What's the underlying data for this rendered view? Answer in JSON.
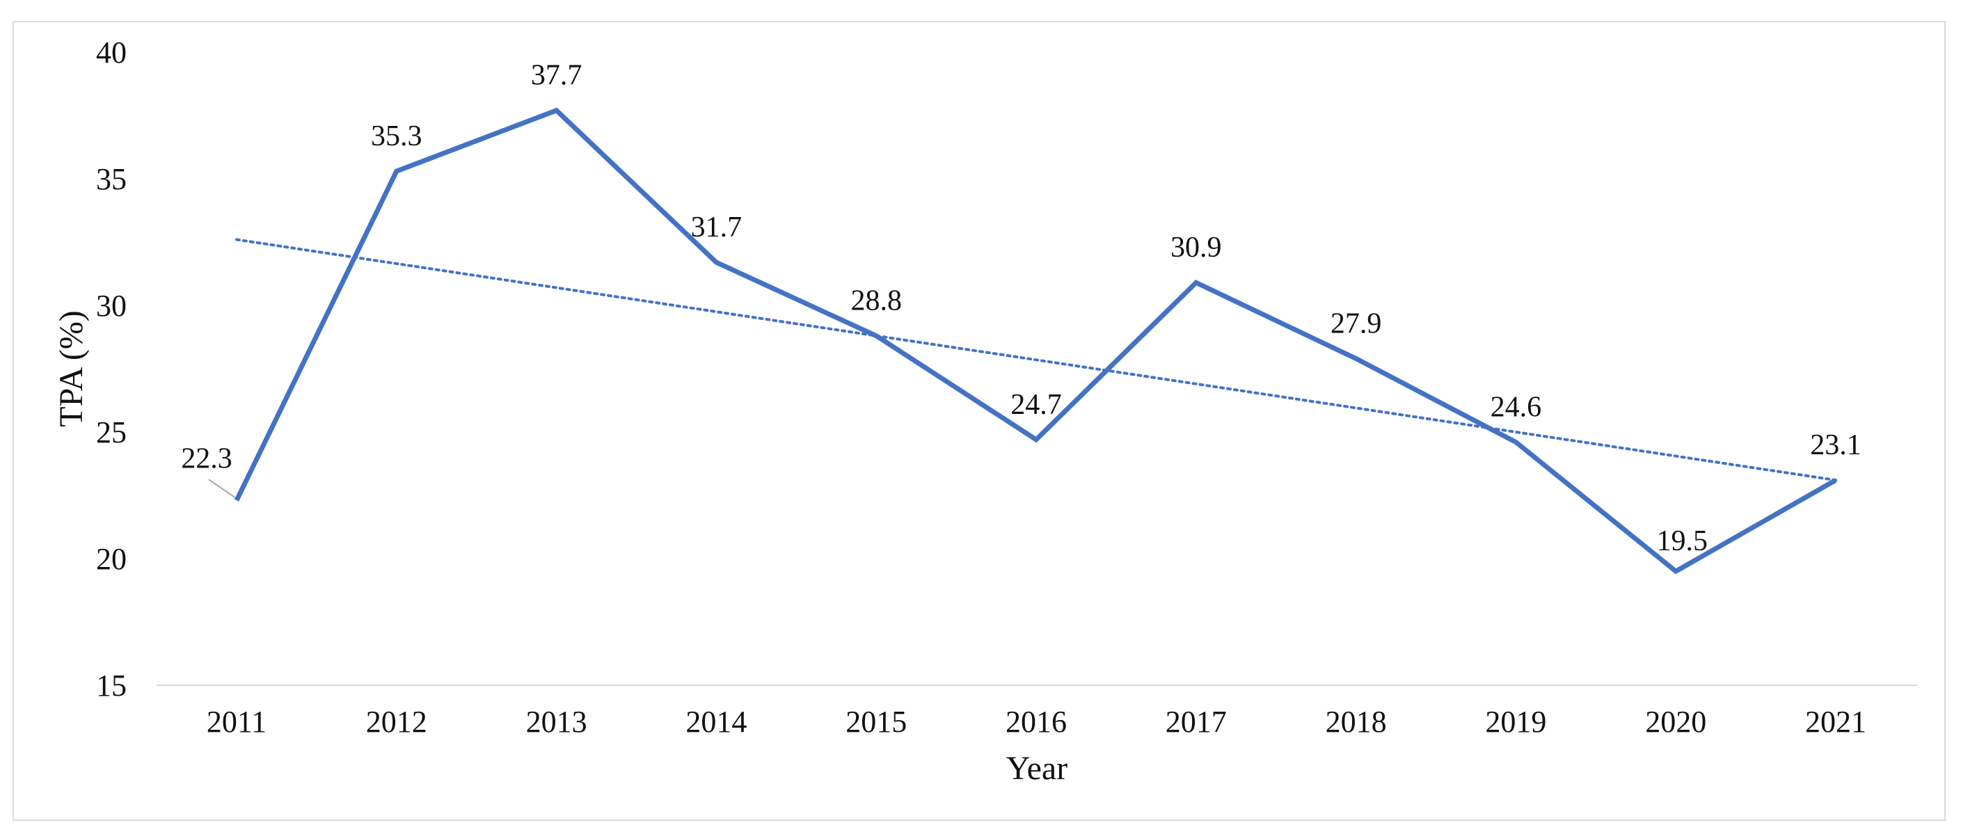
{
  "chart_data": {
    "type": "line",
    "title": "",
    "xlabel": "Year",
    "ylabel": "TPA (%)",
    "categories": [
      "2011",
      "2012",
      "2013",
      "2014",
      "2015",
      "2016",
      "2017",
      "2018",
      "2019",
      "2020",
      "2021"
    ],
    "series": [
      {
        "name": "TPA (%)",
        "values": [
          22.3,
          35.3,
          37.7,
          31.7,
          28.8,
          24.7,
          30.9,
          27.9,
          24.6,
          19.5,
          23.1
        ],
        "data_labels": [
          "22.3",
          "35.3",
          "37.7",
          "31.7",
          "28.8",
          "24.7",
          "30.9",
          "27.9",
          "24.6",
          "19.5",
          "23.1"
        ]
      }
    ],
    "trendline": {
      "type": "linear",
      "style": "dotted",
      "start": 32.6,
      "end": 23.1
    },
    "y_ticks": [
      "15",
      "20",
      "25",
      "30",
      "35",
      "40"
    ],
    "ylim": [
      15,
      40
    ],
    "grid": false,
    "legend": "none",
    "colors": {
      "series": "#4472C4",
      "trend": "#4472C4",
      "axis": "#d9d9d9",
      "leader": "#a6a6a6"
    }
  }
}
